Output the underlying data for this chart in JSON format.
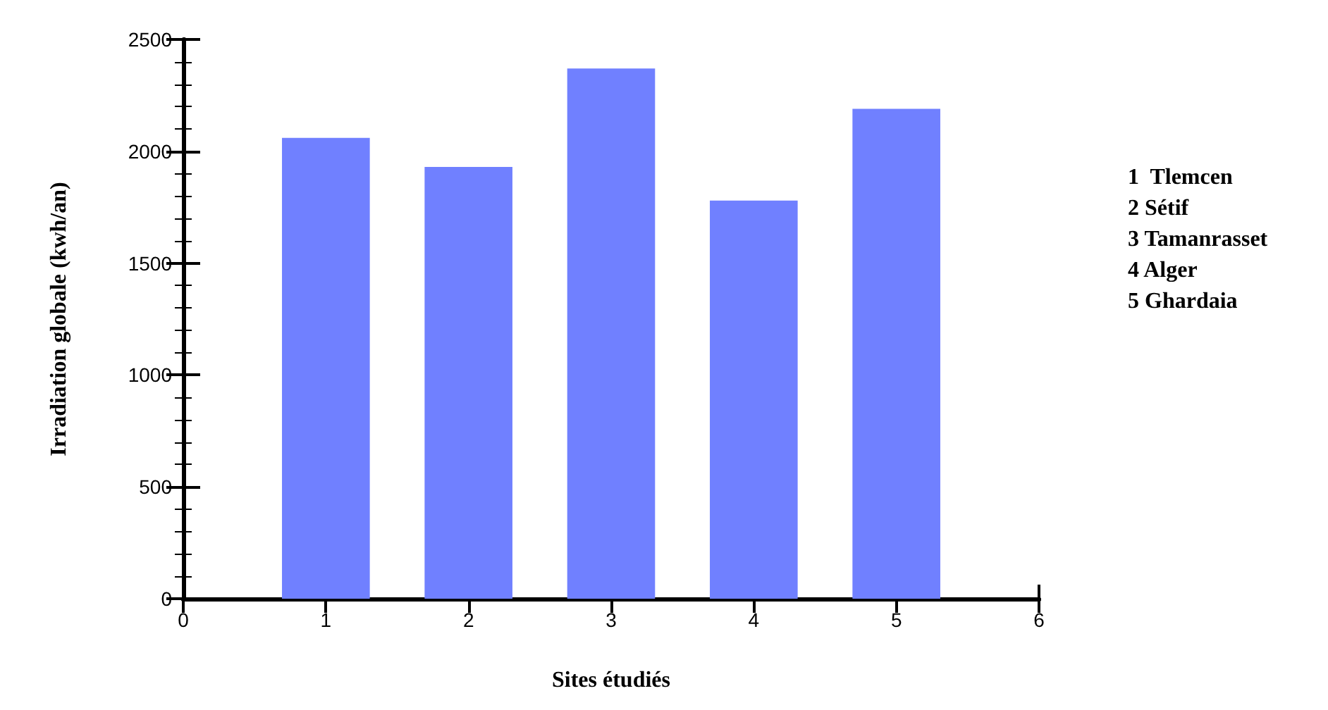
{
  "chart_data": {
    "type": "bar",
    "xlabel": "Sites étudiés",
    "ylabel": "Irradiation globale (kwh/an)",
    "x": [
      1,
      2,
      3,
      4,
      5
    ],
    "values": [
      2060,
      1930,
      2370,
      1780,
      2190
    ],
    "color": "#7080ff",
    "xlim": [
      0,
      6
    ],
    "xticks": [
      0,
      1,
      2,
      3,
      4,
      5,
      6
    ],
    "ylim": [
      0,
      2500
    ],
    "yticks": [
      0,
      500,
      1000,
      1500,
      2000,
      2500
    ],
    "grid": false,
    "annotations": [
      "1  Tlemcen",
      "2 Sétif",
      "3 Tamanrasset",
      "4 Alger",
      "5 Ghardaia"
    ]
  }
}
